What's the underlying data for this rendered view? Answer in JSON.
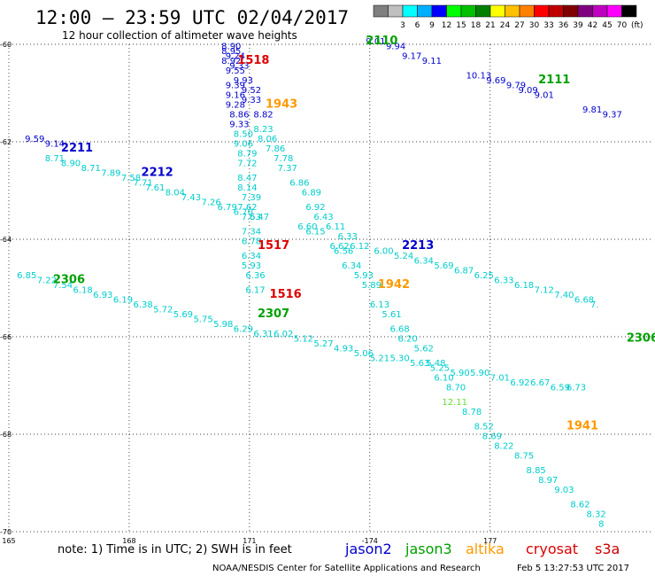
{
  "header": {
    "title": "12:00 — 23:59 UTC 02/04/2017",
    "subtitle": "12 hour collection of altimeter wave heights"
  },
  "legend": {
    "unit": "(ft)",
    "scale": [
      {
        "label": "",
        "color": "#7f7f7f"
      },
      {
        "label": "3",
        "color": "#bfbfbf"
      },
      {
        "label": "6",
        "color": "#00ffff"
      },
      {
        "label": "9",
        "color": "#00b0ff"
      },
      {
        "label": "12",
        "color": "#0000ff"
      },
      {
        "label": "15",
        "color": "#00ff00"
      },
      {
        "label": "18",
        "color": "#00c000"
      },
      {
        "label": "21",
        "color": "#008000"
      },
      {
        "label": "24",
        "color": "#ffff00"
      },
      {
        "label": "27",
        "color": "#ffc000"
      },
      {
        "label": "30",
        "color": "#ff8000"
      },
      {
        "label": "33",
        "color": "#ff0000"
      },
      {
        "label": "36",
        "color": "#c00000"
      },
      {
        "label": "39",
        "color": "#800000"
      },
      {
        "label": "42",
        "color": "#800080"
      },
      {
        "label": "45",
        "color": "#c000c0"
      },
      {
        "label": "70",
        "color": "#ff00ff"
      },
      {
        "label": "",
        "color": "#000000"
      }
    ]
  },
  "footer": {
    "note": "note: 1) Time is in UTC; 2) SWH is in feet",
    "credit": "NOAA/NESDIS Center for Satellite Applications and Research",
    "timestamp": "Feb  5 13:27:53 UTC 2017",
    "satellites": [
      {
        "name": "jason2",
        "color": "#0000cc"
      },
      {
        "name": "jason3",
        "color": "#00a000"
      },
      {
        "name": "altika",
        "color": "#ff9900"
      },
      {
        "name": "cryosat",
        "color": "#dd0000"
      },
      {
        "name": "s3a",
        "color": "#cc0000"
      }
    ]
  },
  "chart_data": {
    "type": "scatter",
    "xlabel": "",
    "ylabel": "",
    "xlim": [
      165,
      181
    ],
    "ylim": [
      -70,
      -60
    ],
    "xticks": [
      {
        "v": 165,
        "l": "165"
      },
      {
        "v": 168,
        "l": "168"
      },
      {
        "v": 171,
        "l": "171"
      },
      {
        "v": 174,
        "l": "-174"
      },
      {
        "v": 177,
        "l": "177"
      }
    ],
    "yticks": [
      {
        "v": -60,
        "l": "-60"
      },
      {
        "v": -62,
        "l": "-62"
      },
      {
        "v": -64,
        "l": "-64"
      },
      {
        "v": -66,
        "l": "-66"
      },
      {
        "v": -68,
        "l": "-68"
      },
      {
        "v": -70,
        "l": "-70"
      }
    ],
    "grid": true,
    "colors": {
      "low": "#00cccc",
      "mid": "#0000cc",
      "high": "#cc0000",
      "green": "#00aa00"
    },
    "time_labels": [
      {
        "text": "1518",
        "x": 170.7,
        "y": -60.4,
        "color": "#dd0000"
      },
      {
        "text": "1943",
        "x": 171.4,
        "y": -61.3,
        "color": "#ff9900"
      },
      {
        "text": "2110",
        "x": 173.9,
        "y": -60.0,
        "color": "#00a000"
      },
      {
        "text": "2111",
        "x": 178.2,
        "y": -60.8,
        "color": "#00a000"
      },
      {
        "text": "2211",
        "x": 166.3,
        "y": -62.2,
        "color": "#0000cc"
      },
      {
        "text": "2212",
        "x": 168.3,
        "y": -62.7,
        "color": "#0000cc"
      },
      {
        "text": "1517",
        "x": 171.2,
        "y": -64.2,
        "color": "#dd0000"
      },
      {
        "text": "2213",
        "x": 174.8,
        "y": -64.2,
        "color": "#0000cc"
      },
      {
        "text": "2306",
        "x": 166.1,
        "y": -64.9,
        "color": "#00a000"
      },
      {
        "text": "1942",
        "x": 174.2,
        "y": -65.0,
        "color": "#ff9900"
      },
      {
        "text": "1516",
        "x": 171.5,
        "y": -65.2,
        "color": "#dd0000"
      },
      {
        "text": "2307",
        "x": 171.2,
        "y": -65.6,
        "color": "#00a000"
      },
      {
        "text": "2306",
        "x": 180.4,
        "y": -66.1,
        "color": "#00a000"
      },
      {
        "text": "1941",
        "x": 178.9,
        "y": -67.9,
        "color": "#ff9900"
      }
    ],
    "series": [
      {
        "name": "jason2",
        "color": "#0000cc",
        "points": [
          {
            "x": 170.3,
            "y": -60.1,
            "v": "8.90"
          },
          {
            "x": 170.3,
            "y": -60.2,
            "v": "8.95"
          },
          {
            "x": 170.4,
            "y": -60.3,
            "v": "9.24"
          },
          {
            "x": 170.3,
            "y": -60.4,
            "v": "8.92"
          },
          {
            "x": 170.5,
            "y": -60.5,
            "v": "9.33"
          },
          {
            "x": 170.4,
            "y": -60.6,
            "v": "9.55"
          },
          {
            "x": 170.6,
            "y": -60.8,
            "v": "9.93"
          },
          {
            "x": 170.4,
            "y": -60.9,
            "v": "9.39"
          },
          {
            "x": 170.8,
            "y": -61.0,
            "v": "9.52"
          },
          {
            "x": 170.4,
            "y": -61.1,
            "v": "9.16"
          },
          {
            "x": 170.8,
            "y": -61.2,
            "v": "9.33"
          },
          {
            "x": 170.4,
            "y": -61.3,
            "v": "9.28"
          },
          {
            "x": 170.5,
            "y": -61.5,
            "v": "8.86"
          },
          {
            "x": 171.1,
            "y": -61.5,
            "v": "8.82"
          },
          {
            "x": 170.5,
            "y": -61.7,
            "v": "9.33"
          },
          {
            "x": 173.9,
            "y": -60.0,
            "v": "9.01"
          },
          {
            "x": 174.4,
            "y": -60.1,
            "v": "9.94"
          },
          {
            "x": 174.8,
            "y": -60.3,
            "v": "9.17"
          },
          {
            "x": 175.3,
            "y": -60.4,
            "v": "9.11"
          },
          {
            "x": 176.4,
            "y": -60.7,
            "v": "10.13"
          },
          {
            "x": 176.9,
            "y": -60.8,
            "v": "9.69"
          },
          {
            "x": 177.4,
            "y": -60.9,
            "v": "9.79"
          },
          {
            "x": 177.7,
            "y": -61.0,
            "v": "9.09"
          },
          {
            "x": 178.1,
            "y": -61.1,
            "v": "9.01"
          },
          {
            "x": 179.3,
            "y": -61.4,
            "v": "9.81"
          },
          {
            "x": 179.8,
            "y": -61.5,
            "v": "9.37"
          },
          {
            "x": 165.4,
            "y": -62.0,
            "v": "9.59"
          },
          {
            "x": 165.9,
            "y": -62.1,
            "v": "9.14"
          }
        ]
      },
      {
        "name": "jason3",
        "color": "#00cccc",
        "points": [
          {
            "x": 170.6,
            "y": -61.9,
            "v": "8.50"
          },
          {
            "x": 170.6,
            "y": -62.1,
            "v": "9.06"
          },
          {
            "x": 170.7,
            "y": -62.3,
            "v": "8.79"
          },
          {
            "x": 170.7,
            "y": -62.5,
            "v": "7.72"
          },
          {
            "x": 170.7,
            "y": -62.8,
            "v": "8.47"
          },
          {
            "x": 170.7,
            "y": -63.0,
            "v": "8.14"
          },
          {
            "x": 170.8,
            "y": -63.2,
            "v": "7.39"
          },
          {
            "x": 170.7,
            "y": -63.4,
            "v": "7.62"
          },
          {
            "x": 170.8,
            "y": -63.6,
            "v": "7.53"
          },
          {
            "x": 170.8,
            "y": -63.9,
            "v": "7.34"
          },
          {
            "x": 170.8,
            "y": -64.1,
            "v": "6.78"
          },
          {
            "x": 170.8,
            "y": -64.4,
            "v": "6.34"
          },
          {
            "x": 170.8,
            "y": -64.6,
            "v": "5.93"
          },
          {
            "x": 170.9,
            "y": -64.8,
            "v": "6.36"
          },
          {
            "x": 170.9,
            "y": -65.1,
            "v": "6.17"
          },
          {
            "x": 171.1,
            "y": -61.8,
            "v": "8.23"
          },
          {
            "x": 171.2,
            "y": -62.0,
            "v": "8.06"
          },
          {
            "x": 171.4,
            "y": -62.2,
            "v": "7.86"
          },
          {
            "x": 171.6,
            "y": -62.4,
            "v": "7.78"
          },
          {
            "x": 171.7,
            "y": -62.6,
            "v": "7.37"
          },
          {
            "x": 172.0,
            "y": -62.9,
            "v": "6.86"
          },
          {
            "x": 172.3,
            "y": -63.1,
            "v": "6.89"
          },
          {
            "x": 172.4,
            "y": -63.4,
            "v": "6.92"
          },
          {
            "x": 172.6,
            "y": -63.6,
            "v": "6.43"
          },
          {
            "x": 172.4,
            "y": -63.9,
            "v": "6.15"
          },
          {
            "x": 172.9,
            "y": -63.8,
            "v": "6.11"
          },
          {
            "x": 172.2,
            "y": -63.8,
            "v": "6.60"
          },
          {
            "x": 173.2,
            "y": -64.0,
            "v": "6.33"
          },
          {
            "x": 173.0,
            "y": -64.2,
            "v": "6.62"
          },
          {
            "x": 173.1,
            "y": -64.3,
            "v": "6.56"
          },
          {
            "x": 173.3,
            "y": -64.6,
            "v": "6.34"
          },
          {
            "x": 173.6,
            "y": -64.8,
            "v": "5.93"
          },
          {
            "x": 173.8,
            "y": -65.0,
            "v": "5.89"
          },
          {
            "x": 174.0,
            "y": -65.4,
            "v": "6.13"
          },
          {
            "x": 174.3,
            "y": -65.6,
            "v": "5.61"
          },
          {
            "x": 174.5,
            "y": -65.9,
            "v": "6.68"
          },
          {
            "x": 174.7,
            "y": -66.1,
            "v": "6.20"
          },
          {
            "x": 175.1,
            "y": -66.3,
            "v": "5.62"
          },
          {
            "x": 175.4,
            "y": -66.6,
            "v": "5.48"
          },
          {
            "x": 175.6,
            "y": -66.9,
            "v": "6.10"
          },
          {
            "x": 175.9,
            "y": -67.1,
            "v": "8.70"
          },
          {
            "x": 176.3,
            "y": -67.6,
            "v": "8.78"
          },
          {
            "x": 176.6,
            "y": -67.9,
            "v": "8.52"
          },
          {
            "x": 176.8,
            "y": -68.1,
            "v": "8.69"
          },
          {
            "x": 177.1,
            "y": -68.3,
            "v": "8.22"
          },
          {
            "x": 177.6,
            "y": -68.5,
            "v": "8.75"
          },
          {
            "x": 177.9,
            "y": -68.8,
            "v": "8.85"
          },
          {
            "x": 178.2,
            "y": -69.0,
            "v": "8.97"
          },
          {
            "x": 178.6,
            "y": -69.2,
            "v": "9.03"
          },
          {
            "x": 179.0,
            "y": -69.5,
            "v": "8.62"
          },
          {
            "x": 179.4,
            "y": -69.7,
            "v": "8.32"
          },
          {
            "x": 179.7,
            "y": -69.9,
            "v": "8"
          },
          {
            "x": 165.9,
            "y": -62.4,
            "v": "8.71"
          },
          {
            "x": 166.3,
            "y": -62.5,
            "v": "8.90"
          },
          {
            "x": 166.8,
            "y": -62.6,
            "v": "8.71"
          },
          {
            "x": 167.3,
            "y": -62.7,
            "v": "7.89"
          },
          {
            "x": 167.8,
            "y": -62.8,
            "v": "7.58"
          },
          {
            "x": 168.1,
            "y": -62.9,
            "v": "7.71"
          },
          {
            "x": 168.4,
            "y": -63.0,
            "v": "7.61"
          },
          {
            "x": 168.9,
            "y": -63.1,
            "v": "8.04"
          },
          {
            "x": 169.3,
            "y": -63.2,
            "v": "7.43"
          },
          {
            "x": 169.8,
            "y": -63.3,
            "v": "7.26"
          },
          {
            "x": 170.2,
            "y": -63.4,
            "v": "6.79"
          },
          {
            "x": 170.6,
            "y": -63.5,
            "v": "6.70"
          },
          {
            "x": 171.0,
            "y": -63.6,
            "v": "6.47"
          },
          {
            "x": 173.5,
            "y": -64.2,
            "v": "6.12"
          },
          {
            "x": 174.1,
            "y": -64.3,
            "v": "6.00"
          },
          {
            "x": 174.6,
            "y": -64.4,
            "v": "5.24"
          },
          {
            "x": 175.1,
            "y": -64.5,
            "v": "6.34"
          },
          {
            "x": 175.6,
            "y": -64.6,
            "v": "5.69"
          },
          {
            "x": 176.1,
            "y": -64.7,
            "v": "6.87"
          },
          {
            "x": 176.6,
            "y": -64.8,
            "v": "6.25"
          },
          {
            "x": 177.1,
            "y": -64.9,
            "v": "6.33"
          },
          {
            "x": 177.6,
            "y": -65.0,
            "v": "6.18"
          },
          {
            "x": 178.1,
            "y": -65.1,
            "v": "7.12"
          },
          {
            "x": 178.6,
            "y": -65.2,
            "v": "7.40"
          },
          {
            "x": 179.1,
            "y": -65.3,
            "v": "6.68"
          },
          {
            "x": 179.5,
            "y": -65.4,
            "v": "7."
          },
          {
            "x": 165.2,
            "y": -64.8,
            "v": "6.85"
          },
          {
            "x": 165.7,
            "y": -64.9,
            "v": "7.22"
          },
          {
            "x": 166.1,
            "y": -65.0,
            "v": "7.54"
          },
          {
            "x": 166.6,
            "y": -65.1,
            "v": "6.18"
          },
          {
            "x": 167.1,
            "y": -65.2,
            "v": "6.93"
          },
          {
            "x": 167.6,
            "y": -65.3,
            "v": "6.19"
          },
          {
            "x": 168.1,
            "y": -65.4,
            "v": "6.38"
          },
          {
            "x": 168.6,
            "y": -65.5,
            "v": "5.72"
          },
          {
            "x": 169.1,
            "y": -65.6,
            "v": "5.69"
          },
          {
            "x": 169.6,
            "y": -65.7,
            "v": "5.75"
          },
          {
            "x": 170.1,
            "y": -65.8,
            "v": "5.98"
          },
          {
            "x": 170.6,
            "y": -65.9,
            "v": "6.29"
          },
          {
            "x": 171.1,
            "y": -66.0,
            "v": "6.31"
          },
          {
            "x": 171.6,
            "y": -66.0,
            "v": "6.02"
          },
          {
            "x": 172.1,
            "y": -66.1,
            "v": "5.12"
          },
          {
            "x": 172.6,
            "y": -66.2,
            "v": "5.27"
          },
          {
            "x": 173.1,
            "y": -66.3,
            "v": "4.93"
          },
          {
            "x": 173.6,
            "y": -66.4,
            "v": "5.06"
          },
          {
            "x": 174.0,
            "y": -66.5,
            "v": "5.21"
          },
          {
            "x": 174.5,
            "y": -66.5,
            "v": "5.30"
          },
          {
            "x": 175.0,
            "y": -66.6,
            "v": "5.63"
          },
          {
            "x": 175.5,
            "y": -66.7,
            "v": "5.25"
          },
          {
            "x": 176.0,
            "y": -66.8,
            "v": "5.90"
          },
          {
            "x": 176.5,
            "y": -66.8,
            "v": "5.90"
          },
          {
            "x": 177.0,
            "y": -66.9,
            "v": "7.01"
          },
          {
            "x": 177.5,
            "y": -67.0,
            "v": "6.92"
          },
          {
            "x": 178.0,
            "y": -67.0,
            "v": "6.67"
          },
          {
            "x": 178.5,
            "y": -67.1,
            "v": "6.59"
          },
          {
            "x": 178.9,
            "y": -67.1,
            "v": "6.73"
          }
        ]
      },
      {
        "name": "altika",
        "color": "#66dd33",
        "points": [
          {
            "x": 175.8,
            "y": -67.4,
            "v": "12.11"
          }
        ]
      }
    ]
  }
}
